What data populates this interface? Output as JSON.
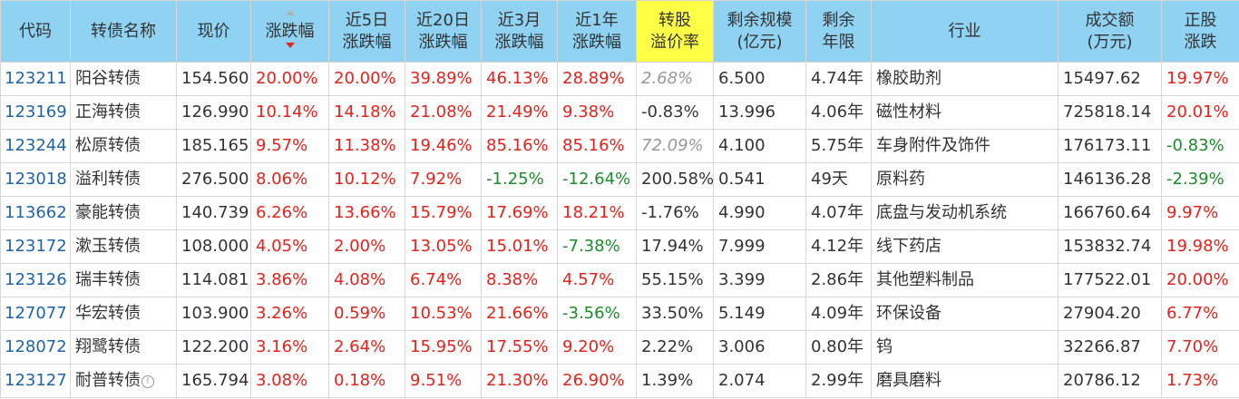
{
  "headers": {
    "code": "代码",
    "name": "转债名称",
    "price": "现价",
    "change": "涨跌幅",
    "chg5d_1": "近5日",
    "chg5d_2": "涨跌幅",
    "chg20d_1": "近20日",
    "chg20d_2": "涨跌幅",
    "chg3m_1": "近3月",
    "chg3m_2": "涨跌幅",
    "chg1y_1": "近1年",
    "chg1y_2": "涨跌幅",
    "premium_1": "转股",
    "premium_2": "溢价率",
    "scale_1": "剩余规模",
    "scale_2": "(亿元)",
    "term_1": "剩余",
    "term_2": "年限",
    "industry": "行业",
    "volume_1": "成交额",
    "volume_2": "(万元)",
    "stock_1": "正股",
    "stock_2": "涨跌"
  },
  "rows": [
    {
      "code": "123211",
      "name": "阳谷转债",
      "info": "",
      "price": "154.560",
      "change": "20.00%",
      "chg5d": "20.00%",
      "chg20d": "39.89%",
      "chg3m": "46.13%",
      "chg1y": "28.89%",
      "premium": "2.68%",
      "scale": "6.500",
      "term": "4.74年",
      "industry": "橡胶助剂",
      "volume": "15497.62",
      "stock": "19.97%"
    },
    {
      "code": "123169",
      "name": "正海转债",
      "info": "",
      "price": "126.990",
      "change": "10.14%",
      "chg5d": "14.18%",
      "chg20d": "21.08%",
      "chg3m": "21.49%",
      "chg1y": "9.38%",
      "premium": "-0.83%",
      "scale": "13.996",
      "term": "4.06年",
      "industry": "磁性材料",
      "volume": "725818.14",
      "stock": "20.01%"
    },
    {
      "code": "123244",
      "name": "松原转债",
      "info": "",
      "price": "185.165",
      "change": "9.57%",
      "chg5d": "11.38%",
      "chg20d": "19.46%",
      "chg3m": "85.16%",
      "chg1y": "85.16%",
      "premium": "72.09%",
      "scale": "4.100",
      "term": "5.75年",
      "industry": "车身附件及饰件",
      "volume": "176173.11",
      "stock": "-0.83%"
    },
    {
      "code": "123018",
      "name": "溢利转债",
      "info": "",
      "price": "276.500",
      "change": "8.06%",
      "chg5d": "10.12%",
      "chg20d": "7.92%",
      "chg3m": "-1.25%",
      "chg1y": "-12.64%",
      "premium": "200.58%",
      "scale": "0.541",
      "term": "49天",
      "industry": "原料药",
      "volume": "146136.28",
      "stock": "-2.39%"
    },
    {
      "code": "113662",
      "name": "豪能转债",
      "info": "",
      "price": "140.739",
      "change": "6.26%",
      "chg5d": "13.66%",
      "chg20d": "15.79%",
      "chg3m": "17.69%",
      "chg1y": "18.21%",
      "premium": "-1.76%",
      "scale": "4.990",
      "term": "4.07年",
      "industry": "底盘与发动机系统",
      "volume": "166760.64",
      "stock": "9.97%"
    },
    {
      "code": "123172",
      "name": "漱玉转债",
      "info": "",
      "price": "108.000",
      "change": "4.05%",
      "chg5d": "2.00%",
      "chg20d": "13.05%",
      "chg3m": "15.01%",
      "chg1y": "-7.38%",
      "premium": "17.94%",
      "scale": "7.999",
      "term": "4.12年",
      "industry": "线下药店",
      "volume": "153832.74",
      "stock": "19.98%"
    },
    {
      "code": "123126",
      "name": "瑞丰转债",
      "info": "",
      "price": "114.081",
      "change": "3.86%",
      "chg5d": "4.08%",
      "chg20d": "6.74%",
      "chg3m": "8.38%",
      "chg1y": "4.57%",
      "premium": "55.15%",
      "scale": "3.399",
      "term": "2.86年",
      "industry": "其他塑料制品",
      "volume": "177522.01",
      "stock": "20.00%"
    },
    {
      "code": "127077",
      "name": "华宏转债",
      "info": "",
      "price": "103.900",
      "change": "3.26%",
      "chg5d": "0.59%",
      "chg20d": "10.53%",
      "chg3m": "21.66%",
      "chg1y": "-3.56%",
      "premium": "33.50%",
      "scale": "5.149",
      "term": "4.09年",
      "industry": "环保设备",
      "volume": "27904.20",
      "stock": "6.77%"
    },
    {
      "code": "128072",
      "name": "翔鹭转债",
      "info": "",
      "price": "122.200",
      "change": "3.16%",
      "chg5d": "2.64%",
      "chg20d": "15.95%",
      "chg3m": "17.55%",
      "chg1y": "9.20%",
      "premium": "2.22%",
      "scale": "3.006",
      "term": "0.80年",
      "industry": "钨",
      "volume": "32266.87",
      "stock": "7.70%"
    },
    {
      "code": "123127",
      "name": "耐普转债",
      "info": "!",
      "price": "165.794",
      "change": "3.08%",
      "chg5d": "0.18%",
      "chg20d": "9.51%",
      "chg3m": "21.30%",
      "chg1y": "26.90%",
      "premium": "1.39%",
      "scale": "2.074",
      "term": "2.99年",
      "industry": "磨具磨料",
      "volume": "20786.12",
      "stock": "1.73%"
    }
  ],
  "colors": {
    "up": "#e5221b",
    "down": "#1c8c2b",
    "header": "#8fd2f2",
    "highlight": "#ffff45",
    "code": "#1f63a8",
    "muted": "#999999"
  }
}
